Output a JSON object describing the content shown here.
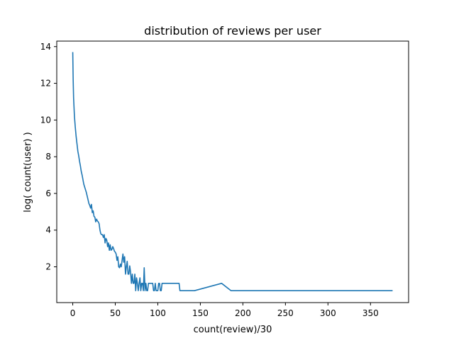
{
  "chart_data": {
    "type": "line",
    "title": "distribution of reviews per user",
    "xlabel": "count(review)/30",
    "ylabel": "log( count(user) )",
    "xlim": [
      -18.8,
      394.8
    ],
    "ylim": [
      0.05,
      14.3
    ],
    "xticks": [
      0,
      50,
      100,
      150,
      200,
      250,
      300,
      350
    ],
    "yticks": [
      2,
      4,
      6,
      8,
      10,
      12,
      14
    ],
    "grid": false,
    "legend": "none",
    "line_color": "#1f77b4",
    "series": [
      {
        "x": [
          0,
          0.5,
          1,
          2,
          3,
          4,
          5,
          6,
          7,
          8,
          9,
          10,
          11,
          12,
          13,
          14,
          15,
          16,
          17,
          18,
          19,
          20,
          21,
          22,
          23,
          24,
          25,
          26,
          27,
          28,
          29,
          30,
          31,
          32,
          33,
          34,
          35,
          36,
          37,
          38,
          39,
          40,
          41,
          42,
          43,
          44,
          45,
          46,
          47,
          48,
          49,
          50,
          51,
          52,
          53,
          54,
          55,
          56,
          57,
          58,
          59,
          60,
          61,
          62,
          63,
          64,
          65,
          66,
          67,
          68,
          69,
          70,
          71,
          72,
          73,
          74,
          75,
          76,
          77,
          78,
          79,
          80,
          81,
          82,
          83,
          84,
          85,
          86,
          87,
          88,
          89,
          90,
          91,
          92,
          93,
          94,
          95,
          96,
          97,
          98,
          99,
          100,
          101,
          102,
          103,
          104,
          105,
          106,
          125,
          126,
          143,
          175,
          186,
          376
        ],
        "y": [
          13.7,
          12.2,
          11.2,
          10.2,
          9.6,
          9.1,
          8.7,
          8.3,
          8.05,
          7.75,
          7.5,
          7.2,
          7.0,
          6.75,
          6.5,
          6.35,
          6.2,
          6.05,
          5.85,
          5.65,
          5.45,
          5.35,
          5.2,
          5.4,
          4.95,
          5.05,
          4.75,
          4.7,
          4.45,
          4.6,
          4.5,
          4.45,
          4.35,
          4.0,
          3.8,
          3.75,
          3.75,
          3.6,
          3.75,
          3.3,
          3.55,
          3.45,
          3.1,
          3.3,
          2.9,
          3.2,
          2.9,
          2.95,
          3.1,
          3.0,
          2.85,
          2.8,
          2.7,
          2.35,
          2.55,
          2.0,
          1.95,
          2.15,
          2.0,
          2.35,
          2.7,
          2.25,
          2.55,
          1.6,
          2.0,
          2.3,
          1.6,
          1.6,
          2.05,
          1.7,
          1.1,
          1.6,
          1.1,
          1.1,
          1.6,
          0.7,
          1.4,
          1.1,
          0.7,
          1.1,
          1.4,
          0.7,
          1.1,
          1.1,
          0.7,
          1.95,
          0.7,
          1.1,
          0.7,
          0.7,
          1.1,
          1.1,
          1.1,
          1.1,
          1.1,
          1.1,
          0.7,
          0.7,
          1.1,
          0.7,
          0.7,
          0.7,
          1.1,
          1.1,
          0.7,
          0.7,
          1.1,
          1.1,
          1.1,
          0.7,
          0.7,
          1.1,
          0.7,
          0.7
        ]
      }
    ]
  }
}
